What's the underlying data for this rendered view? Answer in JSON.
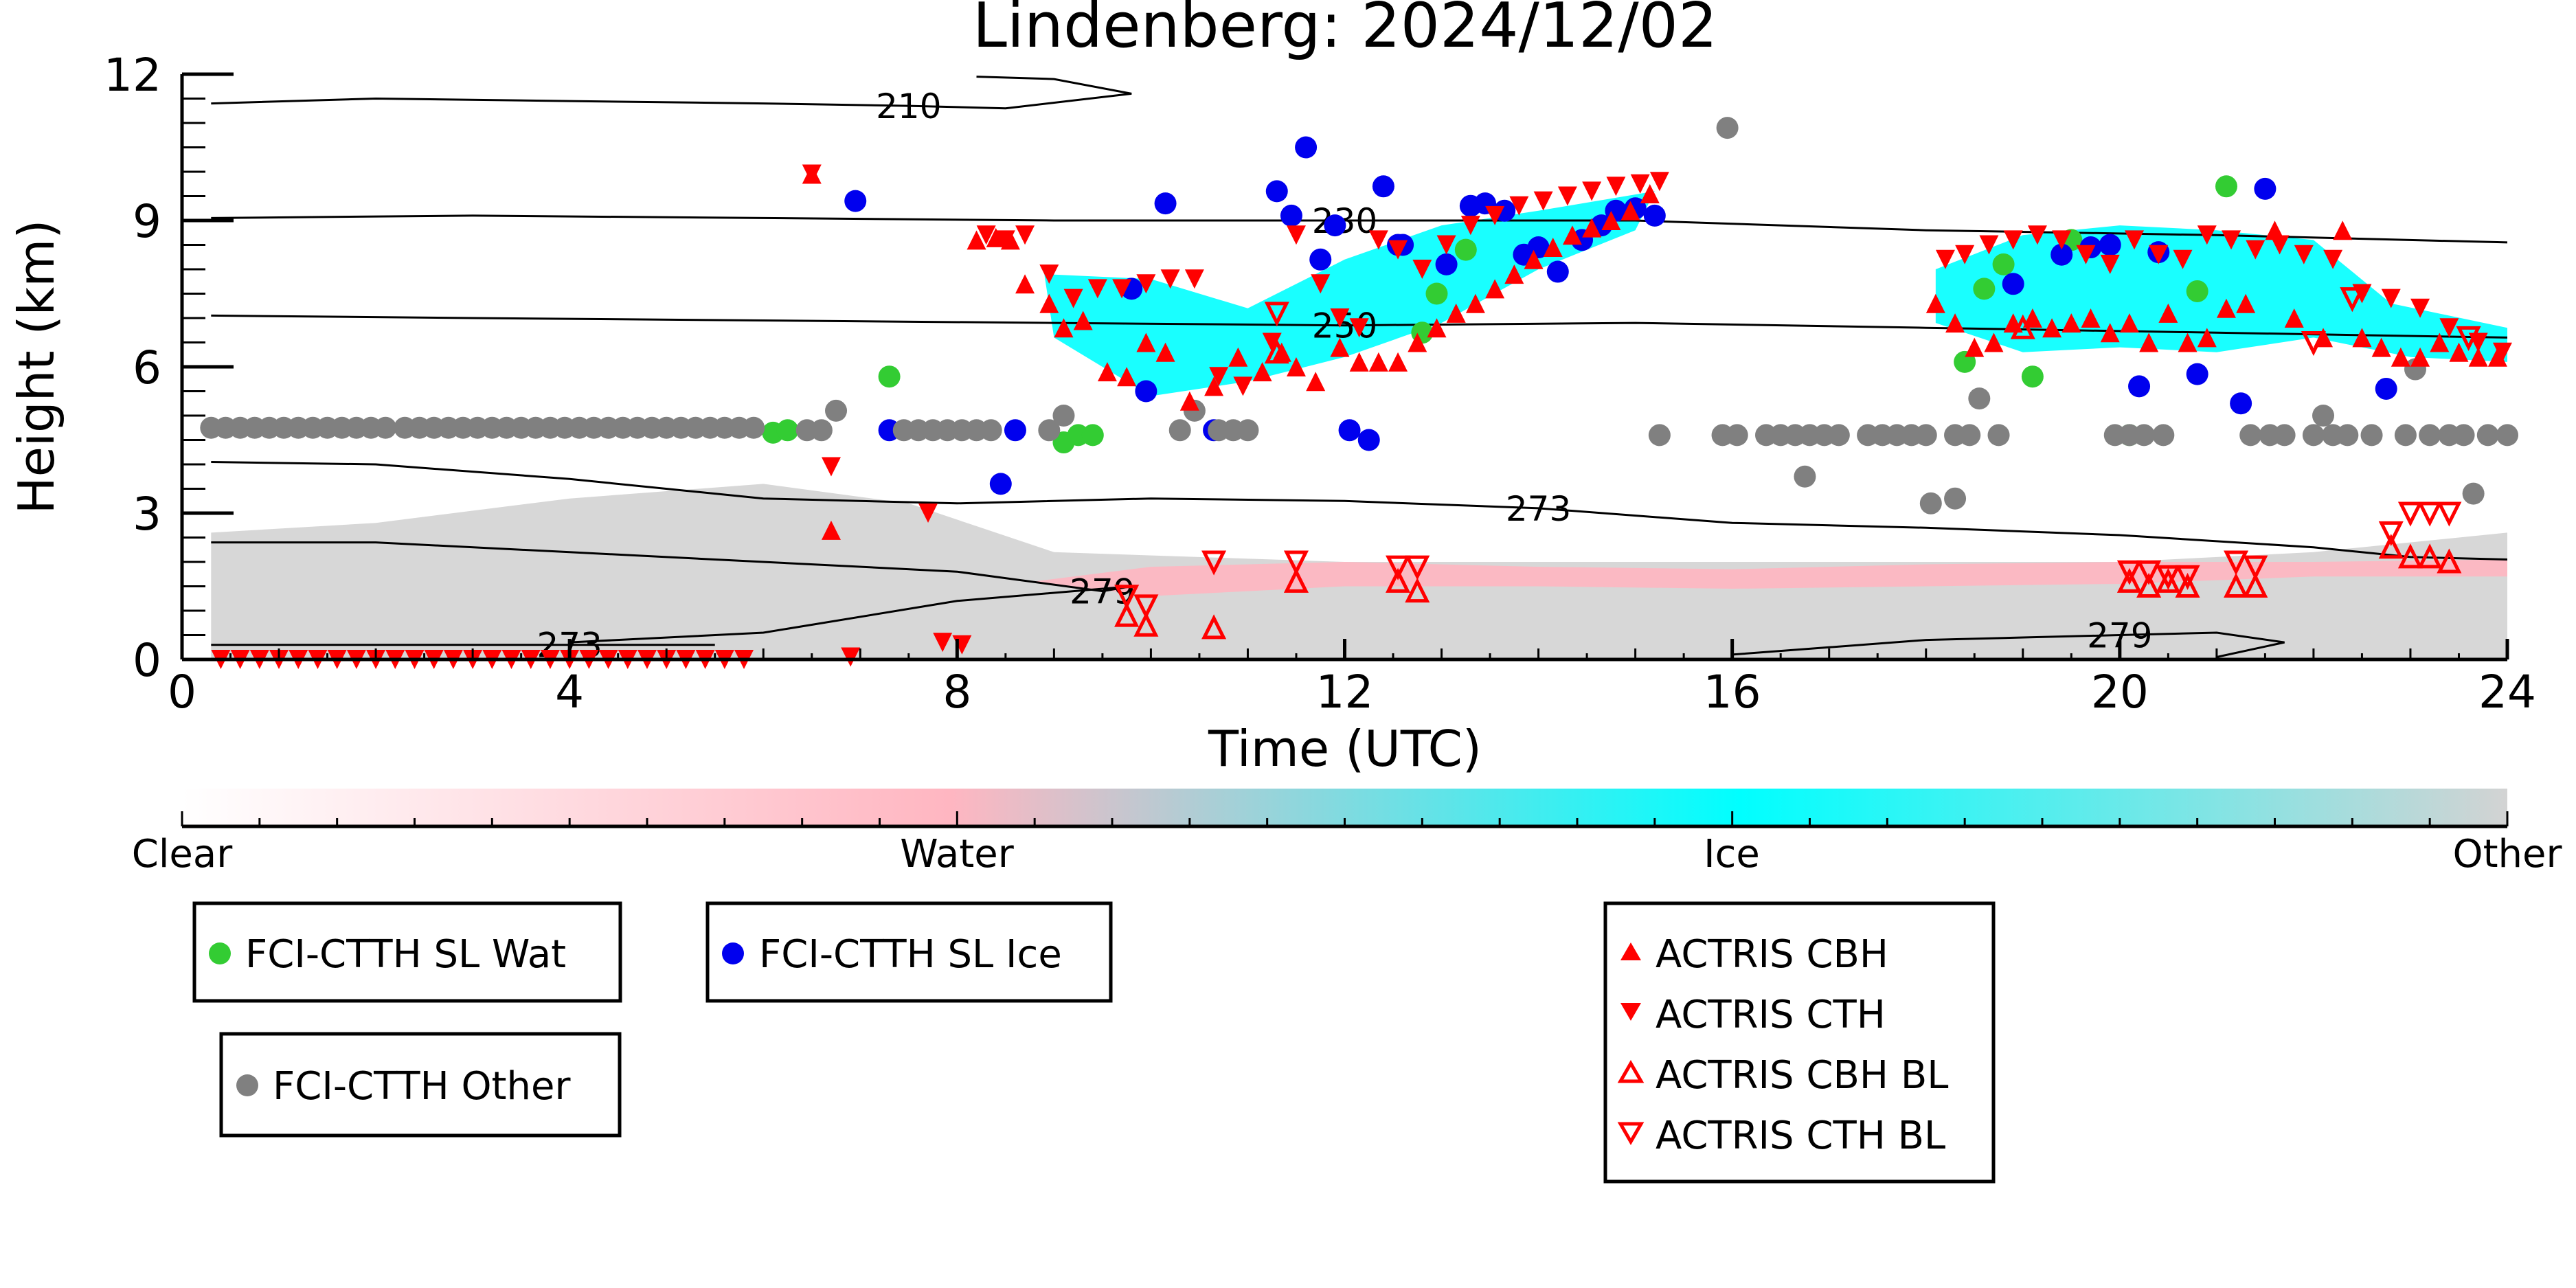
{
  "chart_data": {
    "type": "scatter",
    "title": "Lindenberg: 2024/12/02",
    "xlabel": "Time (UTC)",
    "ylabel": "Height (km)",
    "xlim": [
      0,
      24
    ],
    "ylim": [
      0,
      12
    ],
    "xticks": [
      "0",
      "4",
      "8",
      "12",
      "16",
      "20",
      "24"
    ],
    "yticks": [
      "0",
      "3",
      "6",
      "9",
      "12"
    ],
    "colorbar": {
      "labels": [
        "Clear",
        "Water",
        "Ice",
        "Other"
      ],
      "colors": [
        "#ffffff",
        "#ffb6c1",
        "#00ffff",
        "#d3d3d3"
      ]
    },
    "contours": [
      {
        "label": "210",
        "points": [
          [
            0.3,
            11.4
          ],
          [
            2,
            11.5
          ],
          [
            4,
            11.45
          ],
          [
            6,
            11.4
          ],
          [
            7.5,
            11.35
          ],
          [
            8.5,
            11.3
          ],
          [
            9.8,
            11.6
          ],
          [
            9,
            11.9
          ],
          [
            8.2,
            11.95
          ]
        ]
      },
      {
        "label": "230",
        "points": [
          [
            0.3,
            9.05
          ],
          [
            3,
            9.1
          ],
          [
            6,
            9.05
          ],
          [
            9,
            9.0
          ],
          [
            12,
            9.0
          ],
          [
            15,
            9.0
          ],
          [
            18,
            8.8
          ],
          [
            21,
            8.7
          ],
          [
            24,
            8.55
          ]
        ]
      },
      {
        "label": "250",
        "points": [
          [
            0.3,
            7.05
          ],
          [
            3,
            7.0
          ],
          [
            6,
            6.95
          ],
          [
            9,
            6.9
          ],
          [
            12,
            6.85
          ],
          [
            15,
            6.9
          ],
          [
            18,
            6.8
          ],
          [
            21,
            6.7
          ],
          [
            24,
            6.6
          ]
        ]
      },
      {
        "label": "273",
        "points": [
          [
            0.3,
            4.05
          ],
          [
            2,
            4.0
          ],
          [
            4,
            3.7
          ],
          [
            6,
            3.3
          ],
          [
            8,
            3.2
          ],
          [
            10,
            3.3
          ],
          [
            12,
            3.25
          ],
          [
            14,
            3.1
          ],
          [
            16,
            2.8
          ],
          [
            18,
            2.7
          ],
          [
            20,
            2.55
          ],
          [
            22,
            2.3
          ],
          [
            23,
            2.1
          ],
          [
            24,
            2.05
          ]
        ]
      },
      {
        "label": "279",
        "points": [
          [
            0.3,
            2.4
          ],
          [
            2,
            2.4
          ],
          [
            4,
            2.2
          ],
          [
            6,
            2.0
          ],
          [
            8,
            1.8
          ],
          [
            9.5,
            1.4
          ],
          [
            9.8,
            1.5
          ],
          [
            8,
            1.2
          ],
          [
            6,
            0.55
          ],
          [
            4,
            0.35
          ]
        ]
      },
      {
        "label": "279",
        "points": [
          [
            16,
            0.1
          ],
          [
            17,
            0.25
          ],
          [
            18,
            0.4
          ],
          [
            19,
            0.45
          ],
          [
            20,
            0.5
          ],
          [
            21,
            0.55
          ],
          [
            21.7,
            0.35
          ],
          [
            21,
            0.05
          ]
        ]
      },
      {
        "label": "273",
        "points": [
          [
            0.3,
            0.3
          ],
          [
            2,
            0.3
          ],
          [
            4,
            0.3
          ],
          [
            5.5,
            0.3
          ]
        ]
      }
    ],
    "series": [
      {
        "name": "FCI-CTTH SL Wat",
        "marker": "circle",
        "color": "#33cc33",
        "x": [
          6.1,
          6.25,
          7.3,
          9.1,
          9.25,
          9.4,
          12.8,
          12.95,
          13.25,
          18.4,
          18.6,
          18.8,
          19.1,
          19.5,
          20.1,
          20.8,
          21.1
        ],
        "y": [
          4.65,
          4.7,
          5.8,
          4.45,
          4.6,
          4.6,
          6.7,
          7.5,
          8.4,
          6.1,
          7.6,
          8.1,
          5.8,
          8.6,
          4.6,
          7.55,
          9.7
        ]
      },
      {
        "name": "FCI-CTTH SL Ice",
        "marker": "circle",
        "color": "#0000ee",
        "x": [
          6.95,
          7.3,
          8.45,
          8.6,
          9.8,
          9.95,
          10.15,
          10.65,
          11.3,
          11.45,
          11.6,
          11.75,
          11.9,
          12.05,
          12.25,
          12.4,
          12.55,
          12.6,
          13.05,
          13.3,
          13.45,
          13.65,
          13.85,
          14.0,
          14.2,
          14.45,
          14.65,
          14.8,
          15.0,
          15.2,
          18.9,
          19.4,
          19.7,
          19.9,
          20.2,
          20.4,
          20.8,
          21.25,
          21.5,
          22.75
        ],
        "y": [
          9.4,
          4.7,
          3.6,
          4.7,
          7.6,
          5.5,
          9.35,
          4.7,
          9.6,
          9.1,
          10.5,
          8.2,
          8.9,
          4.7,
          4.5,
          9.7,
          8.5,
          8.5,
          8.1,
          9.3,
          9.35,
          9.2,
          8.3,
          8.45,
          7.95,
          8.6,
          8.9,
          9.2,
          9.25,
          9.1,
          7.7,
          8.3,
          8.45,
          8.5,
          5.6,
          8.35,
          5.85,
          5.25,
          9.65,
          5.55
        ]
      },
      {
        "name": "FCI-CTTH Other",
        "marker": "circle",
        "color": "#808080",
        "x": [
          0.3,
          0.45,
          0.6,
          0.75,
          0.9,
          1.05,
          1.2,
          1.35,
          1.5,
          1.65,
          1.8,
          1.95,
          2.1,
          2.3,
          2.45,
          2.6,
          2.75,
          2.9,
          3.05,
          3.2,
          3.35,
          3.5,
          3.65,
          3.8,
          3.95,
          4.1,
          4.25,
          4.4,
          4.55,
          4.7,
          4.85,
          5.0,
          5.15,
          5.3,
          5.45,
          5.6,
          5.75,
          5.9,
          6.45,
          6.6,
          6.75,
          7.45,
          7.6,
          7.75,
          7.9,
          8.05,
          8.2,
          8.35,
          8.95,
          9.1,
          10.3,
          10.45,
          10.7,
          10.85,
          11.0,
          15.25,
          15.9,
          16.05,
          16.35,
          16.5,
          16.65,
          16.8,
          16.95,
          17.1,
          17.4,
          17.55,
          17.7,
          17.85,
          18.0,
          18.3,
          18.45,
          18.75,
          19.95,
          20.1,
          20.25,
          20.45,
          21.35,
          21.55,
          21.7,
          22.0,
          22.2,
          22.35,
          22.6,
          22.95,
          23.2,
          23.4,
          23.55,
          23.8,
          24.0,
          15.95,
          16.75,
          18.05,
          18.3,
          18.55,
          22.1,
          23.05,
          23.65
        ],
        "y": [
          4.75,
          4.75,
          4.75,
          4.75,
          4.75,
          4.75,
          4.75,
          4.75,
          4.75,
          4.75,
          4.75,
          4.75,
          4.75,
          4.75,
          4.75,
          4.75,
          4.75,
          4.75,
          4.75,
          4.75,
          4.75,
          4.75,
          4.75,
          4.75,
          4.75,
          4.75,
          4.75,
          4.75,
          4.75,
          4.75,
          4.75,
          4.75,
          4.75,
          4.75,
          4.75,
          4.75,
          4.75,
          4.75,
          4.7,
          4.7,
          5.1,
          4.7,
          4.7,
          4.7,
          4.7,
          4.7,
          4.7,
          4.7,
          4.7,
          5.0,
          4.7,
          5.1,
          4.7,
          4.7,
          4.7,
          4.6,
          4.6,
          4.6,
          4.6,
          4.6,
          4.6,
          4.6,
          4.6,
          4.6,
          4.6,
          4.6,
          4.6,
          4.6,
          4.6,
          4.6,
          4.6,
          4.6,
          4.6,
          4.6,
          4.6,
          4.6,
          4.6,
          4.6,
          4.6,
          4.6,
          4.6,
          4.6,
          4.6,
          4.6,
          4.6,
          4.6,
          4.6,
          4.6,
          4.6,
          10.9,
          3.75,
          3.2,
          3.3,
          5.35,
          5.0,
          5.95,
          3.4
        ]
      },
      {
        "name": "ACTRIS CBH",
        "marker": "triangle-up",
        "color": "#ff0000",
        "filled": true,
        "x": [
          6.5,
          6.7,
          8.2,
          8.4,
          8.55,
          8.7,
          8.95,
          9.1,
          9.3,
          9.55,
          9.75,
          9.95,
          10.15,
          10.4,
          10.65,
          10.9,
          11.15,
          11.35,
          11.5,
          11.7,
          11.95,
          12.15,
          12.35,
          12.55,
          12.75,
          12.95,
          13.15,
          13.35,
          13.55,
          13.75,
          13.95,
          14.15,
          14.35,
          14.55,
          14.75,
          14.95,
          15.15,
          18.1,
          18.3,
          18.5,
          18.7,
          18.9,
          19.1,
          19.3,
          19.5,
          19.7,
          19.9,
          20.1,
          20.3,
          20.5,
          20.7,
          20.9,
          21.1,
          21.3,
          21.6,
          21.8,
          22.1,
          22.3,
          22.5,
          22.7,
          22.9,
          23.1,
          23.3,
          23.5,
          23.7,
          23.9
        ],
        "y": [
          9.95,
          2.65,
          8.6,
          8.65,
          8.6,
          7.7,
          7.3,
          6.8,
          6.95,
          5.9,
          5.8,
          6.5,
          6.3,
          5.3,
          5.6,
          6.2,
          5.9,
          6.3,
          6.0,
          5.7,
          6.4,
          6.1,
          6.1,
          6.1,
          6.5,
          6.8,
          7.1,
          7.3,
          7.6,
          7.9,
          8.2,
          8.45,
          8.7,
          8.85,
          9.0,
          9.2,
          9.55,
          7.3,
          6.9,
          6.4,
          6.5,
          6.9,
          7.0,
          6.8,
          6.9,
          7.0,
          6.7,
          6.9,
          6.5,
          7.1,
          6.5,
          6.6,
          7.2,
          7.3,
          8.8,
          7.0,
          6.6,
          8.8,
          6.6,
          6.4,
          6.2,
          6.2,
          6.5,
          6.3,
          6.2,
          6.2
        ]
      },
      {
        "name": "ACTRIS CTH",
        "marker": "triangle-down",
        "color": "#ff0000",
        "filled": true,
        "x": [
          0.4,
          0.6,
          0.8,
          1.0,
          1.2,
          1.4,
          1.6,
          1.8,
          2.0,
          2.2,
          2.4,
          2.6,
          2.8,
          3.0,
          3.2,
          3.4,
          3.6,
          3.8,
          4.0,
          4.2,
          4.4,
          4.6,
          4.8,
          5.0,
          5.2,
          5.4,
          5.6,
          5.8,
          6.5,
          6.7,
          6.9,
          7.7,
          7.85,
          8.05,
          8.3,
          8.5,
          8.7,
          8.95,
          9.2,
          9.45,
          9.7,
          9.95,
          10.2,
          10.45,
          10.7,
          10.95,
          11.25,
          11.5,
          11.75,
          11.95,
          12.15,
          12.35,
          12.55,
          12.8,
          13.05,
          13.3,
          13.55,
          13.8,
          14.05,
          14.3,
          14.55,
          14.8,
          15.05,
          15.25,
          18.2,
          18.4,
          18.65,
          18.9,
          19.15,
          19.4,
          19.65,
          19.9,
          20.15,
          20.4,
          20.65,
          20.9,
          21.15,
          21.4,
          21.65,
          21.9,
          22.2,
          22.5,
          22.8,
          23.1,
          23.4,
          23.7,
          23.95
        ],
        "y": [
          0.0,
          0.0,
          0.0,
          0.0,
          0.0,
          0.0,
          0.0,
          0.0,
          0.0,
          0.0,
          0.0,
          0.0,
          0.0,
          0.0,
          0.0,
          0.0,
          0.0,
          0.0,
          0.0,
          0.0,
          0.0,
          0.0,
          0.0,
          0.0,
          0.0,
          0.0,
          0.0,
          0.0,
          9.95,
          3.95,
          0.05,
          3.0,
          0.35,
          0.3,
          8.7,
          8.6,
          8.7,
          7.9,
          7.4,
          7.6,
          7.6,
          7.7,
          7.8,
          7.8,
          5.8,
          5.6,
          6.5,
          8.7,
          7.7,
          7.0,
          6.8,
          8.6,
          8.4,
          8.0,
          8.5,
          8.9,
          9.1,
          9.3,
          9.4,
          9.5,
          9.6,
          9.7,
          9.75,
          9.8,
          8.2,
          8.3,
          8.5,
          8.6,
          8.7,
          8.6,
          8.3,
          8.1,
          8.6,
          8.3,
          8.2,
          8.7,
          8.6,
          8.4,
          8.5,
          8.3,
          8.2,
          7.5,
          7.4,
          7.2,
          6.8,
          6.5,
          6.3
        ]
      },
      {
        "name": "ACTRIS CBH BL",
        "marker": "triangle-up",
        "color": "#ff0000",
        "filled": false,
        "x": [
          9.75,
          9.95,
          10.65,
          11.5,
          12.55,
          12.75,
          20.1,
          20.3,
          20.5,
          20.7,
          21.2,
          21.4,
          22.8,
          23.0,
          23.2,
          23.4,
          11.3,
          19.0
        ],
        "y": [
          0.9,
          0.7,
          0.65,
          1.6,
          1.6,
          1.4,
          1.6,
          1.5,
          1.6,
          1.5,
          1.5,
          1.5,
          2.3,
          2.1,
          2.1,
          2.0,
          6.3,
          6.8
        ]
      },
      {
        "name": "ACTRIS CTH BL",
        "marker": "triangle-down",
        "color": "#ff0000",
        "filled": false,
        "x": [
          9.75,
          9.95,
          10.65,
          11.5,
          12.55,
          12.75,
          20.1,
          20.3,
          20.5,
          20.7,
          21.2,
          21.4,
          22.8,
          23.0,
          23.2,
          23.4,
          11.3,
          22.4,
          22.0,
          23.6
        ],
        "y": [
          1.3,
          1.1,
          2.0,
          2.0,
          1.9,
          1.9,
          1.8,
          1.8,
          1.7,
          1.7,
          2.0,
          1.9,
          2.6,
          3.0,
          3.0,
          3.0,
          7.1,
          7.4,
          6.5,
          6.6
        ]
      }
    ],
    "legends": [
      {
        "entries": [
          "FCI-CTTH SL Wat"
        ]
      },
      {
        "entries": [
          "FCI-CTTH SL Ice"
        ]
      },
      {
        "entries": [
          "FCI-CTTH Other"
        ]
      },
      {
        "entries": [
          "ACTRIS CBH",
          "ACTRIS CTH",
          "ACTRIS CBH BL",
          "ACTRIS CTH BL"
        ]
      }
    ],
    "grid": false
  }
}
